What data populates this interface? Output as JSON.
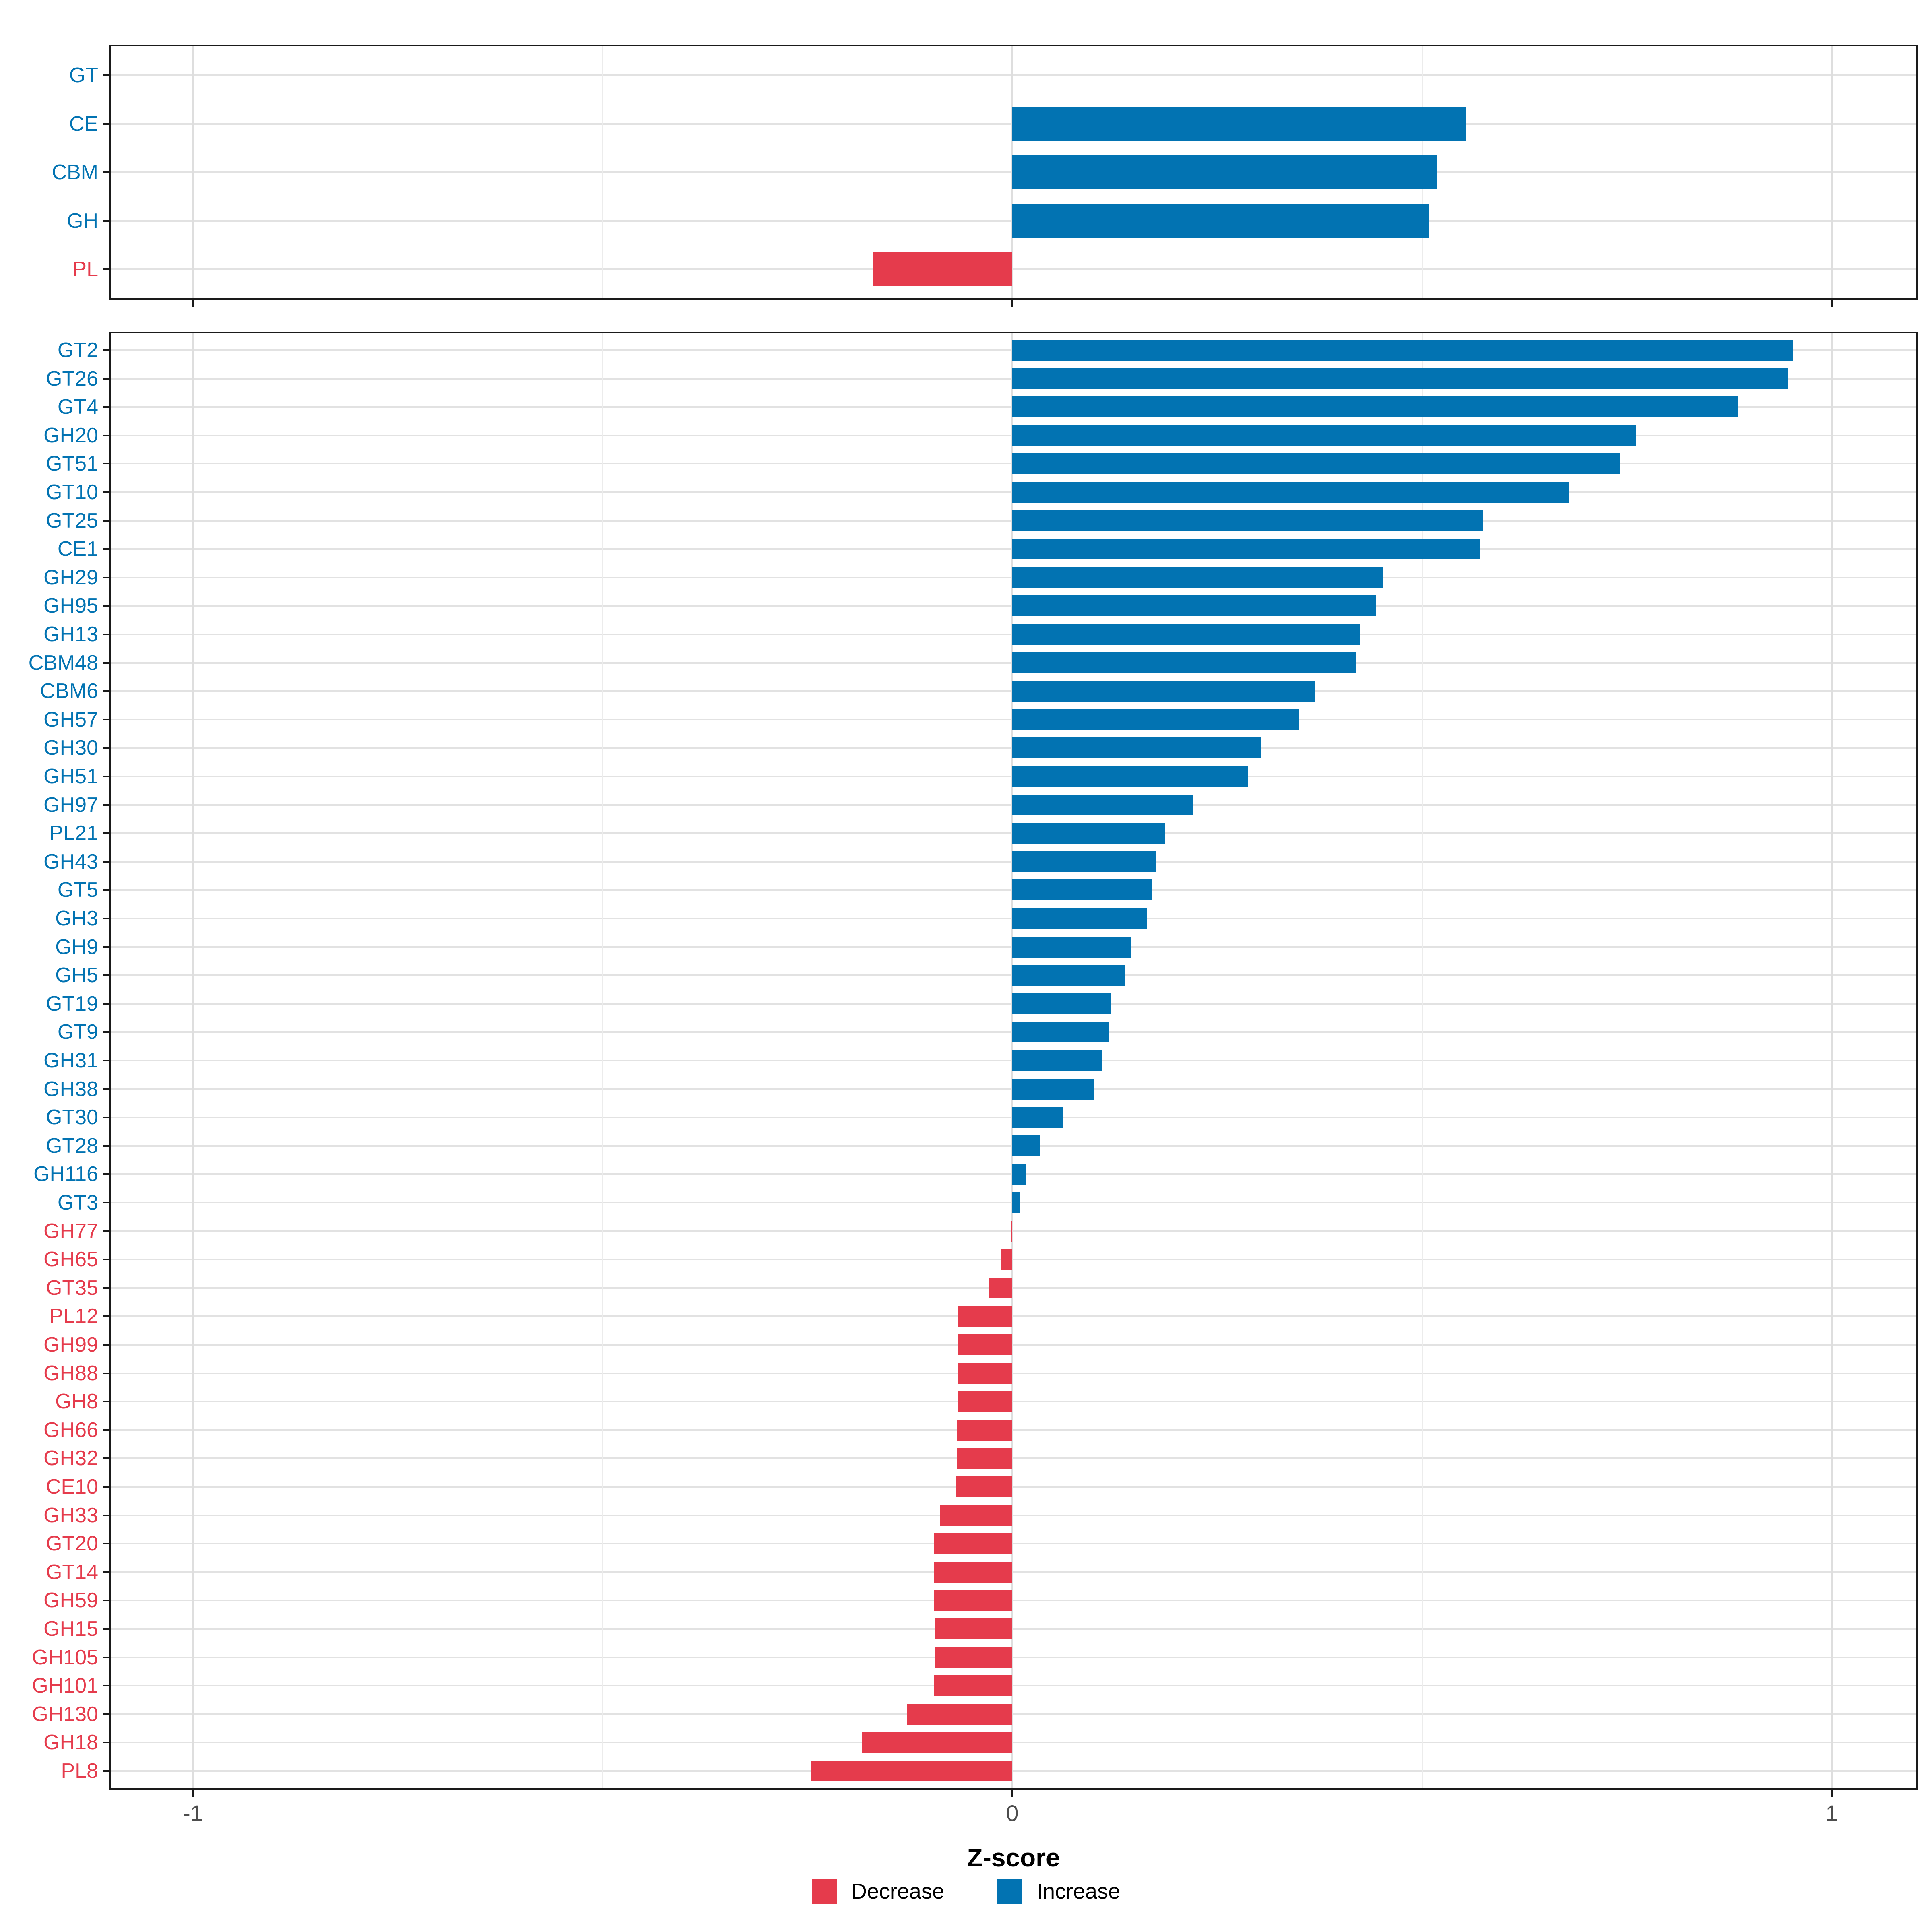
{
  "chart_data": {
    "type": "bar",
    "orientation": "horizontal",
    "title": "",
    "xlabel": "Z-score",
    "x_ticks": [
      {
        "value": -1,
        "label": "-1"
      },
      {
        "value": 0,
        "label": "0"
      },
      {
        "value": 1,
        "label": "1"
      }
    ],
    "x_minor_ticks": [
      -0.5,
      0.5
    ],
    "xlim": [
      -1.1,
      1.1
    ],
    "grid": "on",
    "colors": {
      "increase": "#0273B2",
      "decrease": "#E53B4C"
    },
    "legend": {
      "position": "bottom",
      "entries": [
        {
          "label": "Decrease",
          "color": "#E53B4C"
        },
        {
          "label": "Increase",
          "color": "#0273B2"
        }
      ]
    },
    "panels": [
      {
        "name": "class-summary",
        "categories": [
          "GT",
          "CE",
          "CBM",
          "GH",
          "PL"
        ],
        "values": [
          0.0,
          0.554,
          0.518,
          0.509,
          -0.17
        ]
      },
      {
        "name": "families",
        "categories": [
          "GT2",
          "GT26",
          "GT4",
          "GH20",
          "GT51",
          "GT10",
          "GT25",
          "CE1",
          "GH29",
          "GH95",
          "GH13",
          "CBM48",
          "CBM6",
          "GH57",
          "GH30",
          "GH51",
          "GH97",
          "PL21",
          "GH43",
          "GT5",
          "GH3",
          "GH9",
          "GH5",
          "GT19",
          "GT9",
          "GH31",
          "GH38",
          "GT30",
          "GT28",
          "GH116",
          "GT3",
          "GH77",
          "GH65",
          "GT35",
          "PL12",
          "GH99",
          "GH88",
          "GH8",
          "GH66",
          "GH32",
          "CE10",
          "GH33",
          "GT20",
          "GT14",
          "GH59",
          "GH15",
          "GH105",
          "GH101",
          "GH130",
          "GH18",
          "PL8"
        ],
        "values": [
          0.953,
          0.946,
          0.885,
          0.761,
          0.742,
          0.68,
          0.574,
          0.571,
          0.452,
          0.444,
          0.424,
          0.42,
          0.37,
          0.35,
          0.303,
          0.288,
          0.22,
          0.186,
          0.176,
          0.17,
          0.164,
          0.145,
          0.137,
          0.121,
          0.118,
          0.11,
          0.1,
          0.062,
          0.034,
          0.016,
          0.009,
          -0.002,
          -0.014,
          -0.028,
          -0.066,
          -0.066,
          -0.067,
          -0.067,
          -0.068,
          -0.068,
          -0.069,
          -0.088,
          -0.096,
          -0.096,
          -0.096,
          -0.095,
          -0.095,
          -0.096,
          -0.128,
          -0.183,
          -0.245
        ]
      }
    ]
  }
}
